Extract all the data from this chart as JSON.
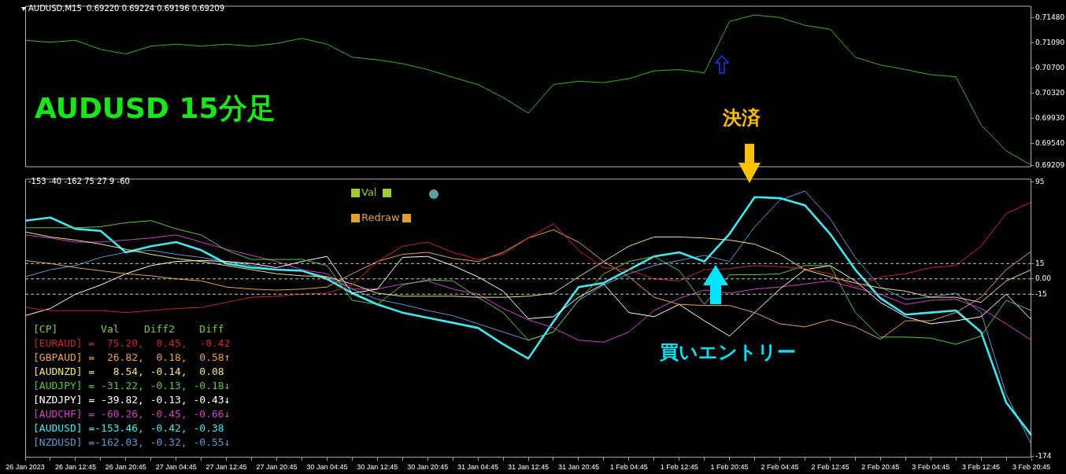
{
  "chart_data": [
    {
      "type": "line",
      "title": "AUDUSD,M15  0.69220 0.69224 0.69196 0.69209",
      "annotations": [
        "AUDUSD 15分足"
      ],
      "categories": [
        null,
        null,
        null,
        null,
        null,
        null,
        null,
        null,
        null,
        null,
        null,
        null,
        null,
        null,
        null,
        null,
        null,
        null,
        null,
        null,
        null,
        null,
        null,
        null,
        null,
        null,
        null,
        null,
        null,
        null,
        null,
        null,
        null,
        null,
        null,
        null,
        null,
        null,
        null,
        null,
        null
      ],
      "values": [
        0.7113,
        0.711,
        0.7113,
        0.7099,
        0.7092,
        0.7104,
        0.7107,
        0.7104,
        0.7107,
        0.7104,
        0.7108,
        0.7116,
        0.7107,
        0.7087,
        0.7083,
        0.7077,
        0.7068,
        0.7056,
        0.7045,
        0.7025,
        0.7001,
        0.7045,
        0.705,
        0.7048,
        0.7054,
        0.7066,
        0.7068,
        0.7063,
        0.7142,
        0.7152,
        0.7148,
        0.7136,
        0.713,
        0.7087,
        0.7075,
        0.7068,
        0.706,
        0.7057,
        0.6983,
        0.6943,
        0.6921
      ],
      "color": "#3cb317",
      "ylim": [
        0.6918,
        0.7166
      ],
      "yticks": [
        {
          "value": 0.7148,
          "label": "0.71480"
        },
        {
          "value": 0.7109,
          "label": "0.71090"
        },
        {
          "value": 0.707,
          "label": "0.70700"
        },
        {
          "value": 0.7032,
          "label": "0.70320"
        },
        {
          "value": 0.6993,
          "label": "0.69930"
        },
        {
          "value": 0.6954,
          "label": "0.69540"
        },
        {
          "value": 0.69209,
          "label": "0.69209"
        }
      ],
      "tick_labels": "y"
    },
    {
      "type": "line",
      "title": "-153 -40 -162 75 27 9 -60",
      "annotations": [
        "決済",
        "買いエントリー",
        "Val",
        "Redraw"
      ],
      "categories": [
        "26 Jan 2023",
        null,
        "26 Jan 12:45",
        null,
        "26 Jan 20:45",
        null,
        "27 Jan 04:45",
        null,
        "27 Jan 12:45",
        null,
        "27 Jan 20:45",
        null,
        "30 Jan 04:45",
        null,
        "30 Jan 12:45",
        null,
        "30 Jan 20:45",
        null,
        "31 Jan 04:45",
        null,
        "31 Jan 12:45",
        null,
        "31 Jan 20:45",
        null,
        "1 Feb 04:45",
        null,
        "1 Feb 12:45",
        null,
        "1 Feb 20:45",
        null,
        "2 Feb 04:45",
        null,
        "2 Feb 12:45",
        null,
        "2 Feb 20:45",
        null,
        "3 Feb 04:45",
        null,
        "3 Feb 12:45",
        null,
        "3 Feb 20:45"
      ],
      "legend_title": "[CP]       Val    Diff2    Diff",
      "series": [
        {
          "name": "[EURAUD] =  75.20,  0.45,  -0.42",
          "color": "#c8242c",
          "values": [
            -28,
            -31,
            -31,
            -31,
            -33,
            -31,
            -29,
            -28,
            -23,
            -18,
            -17,
            -15,
            -14,
            -6,
            17,
            32,
            36,
            26,
            19,
            24,
            40,
            54,
            28,
            11,
            9,
            0,
            -2,
            9,
            10,
            13,
            12,
            10,
            5,
            -8,
            2,
            5,
            11,
            13,
            32,
            64,
            75
          ]
        },
        {
          "name": "[GBPAUD] =  26.82,  0.18,  0.58↑",
          "color": "#e8a04c",
          "values": [
            18,
            15,
            11,
            8,
            5,
            3,
            0,
            -2,
            -8,
            -10,
            -11,
            -10,
            -8,
            5,
            17,
            24,
            26,
            20,
            17,
            26,
            40,
            48,
            36,
            17,
            2,
            -18,
            -25,
            -26,
            -26,
            -33,
            -44,
            -47,
            -40,
            -47,
            -59,
            -41,
            -41,
            -33,
            -18,
            9,
            27
          ]
        },
        {
          "name": "[AUDNZD] =   8.54, -0.14,  0.08",
          "color": "#f0e080",
          "values": [
            46,
            41,
            38,
            34,
            29,
            24,
            20,
            17,
            13,
            9,
            5,
            3,
            2,
            -5,
            -14,
            -17,
            -17,
            -17,
            -18,
            -18,
            -17,
            -14,
            2,
            17,
            32,
            41,
            41,
            40,
            38,
            34,
            24,
            9,
            2,
            -4,
            -9,
            -12,
            -18,
            -18,
            -23,
            -2,
            9
          ]
        },
        {
          "name": "[AUDJPY] = -31.22, -0.13, -0.18↓",
          "color": "#5cc444",
          "values": [
            50,
            50,
            50,
            51,
            55,
            57,
            49,
            43,
            28,
            19,
            19,
            19,
            13,
            -21,
            -25,
            -6,
            -1,
            -2,
            -18,
            -33,
            -60,
            -52,
            -21,
            5,
            17,
            22,
            8,
            -25,
            4,
            4,
            5,
            13,
            13,
            -33,
            -57,
            -57,
            -58,
            -64,
            -56,
            -21,
            -31
          ]
        },
        {
          "name": "[NZDJPY] = -39.82, -0.13, -0.43↓",
          "color": "#ffffff",
          "values": [
            -36,
            -29,
            -15,
            -6,
            5,
            13,
            17,
            18,
            17,
            15,
            11,
            17,
            22,
            -14,
            -10,
            21,
            22,
            13,
            2,
            -12,
            -39,
            -37,
            -18,
            -5,
            -33,
            -37,
            -25,
            -41,
            -56,
            -33,
            -10,
            9,
            13,
            -2,
            -23,
            -37,
            -44,
            -41,
            -37,
            -15,
            -40
          ]
        },
        {
          "name": "[AUDCHF] = -60.26, -0.45, -0.66↓",
          "color": "#d040c8",
          "values": [
            43,
            40,
            36,
            36,
            38,
            40,
            43,
            36,
            29,
            23,
            17,
            9,
            5,
            -10,
            -10,
            -5,
            -2,
            -10,
            -15,
            -29,
            -40,
            -48,
            -60,
            -62,
            -52,
            -31,
            -19,
            -11,
            -14,
            -10,
            -8,
            -5,
            -2,
            -9,
            -15,
            -25,
            -21,
            -20,
            -29,
            -44,
            -60
          ]
        },
        {
          "name": "[AUDUSD] =-153.46, -0.42, -0.38",
          "color": "#40e8f0",
          "values": [
            57,
            60,
            49,
            47,
            26,
            32,
            36,
            28,
            15,
            11,
            9,
            8,
            0,
            -14,
            -25,
            -33,
            -38,
            -43,
            -48,
            -64,
            -78,
            -42,
            -8,
            -4,
            9,
            22,
            26,
            17,
            44,
            80,
            79,
            72,
            44,
            9,
            -19,
            -35,
            -33,
            -31,
            -52,
            -121,
            -153
          ]
        },
        {
          "name": "[NZDUSD] =-162.03, -0.32, -0.55↓",
          "color": "#5a9ad0",
          "values": [
            2,
            9,
            13,
            21,
            26,
            28,
            24,
            21,
            17,
            13,
            9,
            8,
            2,
            -10,
            -20,
            -25,
            -31,
            -36,
            -44,
            -52,
            -60,
            -52,
            -21,
            -6,
            5,
            13,
            18,
            23,
            17,
            51,
            77,
            86,
            59,
            21,
            -8,
            -20,
            -18,
            -14,
            -33,
            -113,
            -162
          ]
        }
      ],
      "legend": "bottom left",
      "ylim": [
        -175,
        98
      ],
      "yticks": [
        95,
        15,
        {
          "value": 0,
          "label": "0.00"
        },
        -15,
        -174
      ],
      "ref_lines": [
        {
          "axis": "y",
          "value": 15,
          "color": "#c8c8c8",
          "line_style": "dashed"
        },
        {
          "axis": "y",
          "value": 0,
          "color": "#c8c8c8",
          "line_style": "dashed"
        },
        {
          "axis": "y",
          "value": -15,
          "color": "#c8c8c8",
          "line_style": "dashed"
        }
      ]
    }
  ]
}
